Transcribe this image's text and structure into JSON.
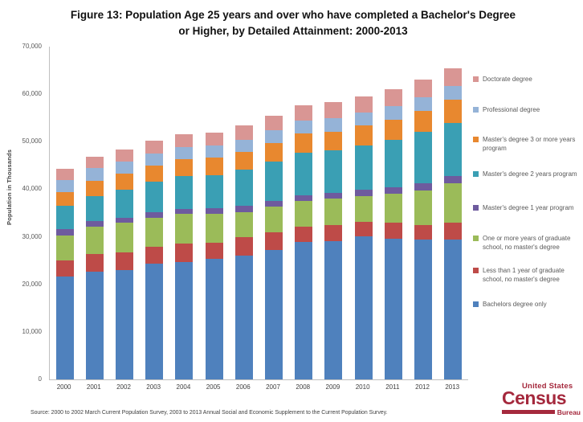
{
  "title": {
    "line1": "Figure 13: Population Age 25 years and over who have completed a Bachelor's Degree",
    "line2": "or Higher, by Detailed Attainment: 2000-2013"
  },
  "source": "Source: 2000 to 2002 March Current Population Survey, 2003 to 2013 Annual Social and Economic Supplement to the Current Population Survey.",
  "logo": {
    "line1": "United States",
    "line2": "Census",
    "line3": "Bureau",
    "color": "#a5293d"
  },
  "chart_data": {
    "type": "bar",
    "stacked": true,
    "title": "Figure 13: Population Age 25 years and over who have completed a Bachelor's Degree or Higher, by Detailed Attainment: 2000-2013",
    "xlabel": "",
    "ylabel": "Population in Thousands",
    "ylim": [
      0,
      70000
    ],
    "y_tick_values": [
      0,
      10000,
      20000,
      30000,
      40000,
      50000,
      60000,
      70000
    ],
    "y_tick_labels": [
      "0",
      "10,000",
      "20,000",
      "30,000",
      "40,000",
      "50,000",
      "60,000",
      "70,000"
    ],
    "grid": false,
    "legend_position": "right",
    "categories": [
      "2000",
      "2001",
      "2002",
      "2003",
      "2004",
      "2005",
      "2006",
      "2007",
      "2008",
      "2009",
      "2010",
      "2011",
      "2012",
      "2013"
    ],
    "series": [
      {
        "name": "Bachelors degree only",
        "color": "#4f81bd",
        "values": [
          21700,
          22700,
          23000,
          24300,
          24700,
          25300,
          26100,
          27300,
          29000,
          29100,
          30100,
          29600,
          29400,
          29500
        ]
      },
      {
        "name": "Less than 1 year of graduate school, no master's degree",
        "color": "#be4b48",
        "values": [
          3300,
          3700,
          3700,
          3600,
          3800,
          3500,
          3900,
          3700,
          3100,
          3300,
          3100,
          3300,
          3000,
          3400
        ]
      },
      {
        "name": "One or more years of graduate school, no master's degree",
        "color": "#9bbb59",
        "values": [
          5300,
          5700,
          6200,
          6100,
          6300,
          6100,
          5200,
          5400,
          5400,
          5600,
          5400,
          6200,
          7400,
          8400
        ]
      },
      {
        "name": "Master's degree 1 year program",
        "color": "#6e5b9e",
        "values": [
          1300,
          1200,
          1100,
          1100,
          1100,
          1200,
          1300,
          1200,
          1300,
          1200,
          1300,
          1300,
          1400,
          1500
        ]
      },
      {
        "name": "Master's degree 2 years program",
        "color": "#3a9fb4",
        "values": [
          4900,
          5300,
          5900,
          6500,
          6900,
          6900,
          7700,
          8200,
          8900,
          9000,
          9400,
          10000,
          10900,
          11200
        ]
      },
      {
        "name": "Master's degree 3 or more years program",
        "color": "#e8882f",
        "values": [
          3000,
          3200,
          3400,
          3400,
          3600,
          3600,
          3700,
          3900,
          4000,
          3900,
          4100,
          4300,
          4400,
          4900
        ]
      },
      {
        "name": "Professional degree",
        "color": "#95b3d7",
        "values": [
          2500,
          2600,
          2600,
          2600,
          2500,
          2600,
          2500,
          2700,
          2800,
          2900,
          2700,
          2800,
          2900,
          2800
        ]
      },
      {
        "name": "Doctorate degree",
        "color": "#d99694",
        "values": [
          2400,
          2500,
          2500,
          2600,
          2600,
          2700,
          3000,
          3100,
          3200,
          3300,
          3400,
          3600,
          3700,
          3800
        ]
      }
    ]
  }
}
